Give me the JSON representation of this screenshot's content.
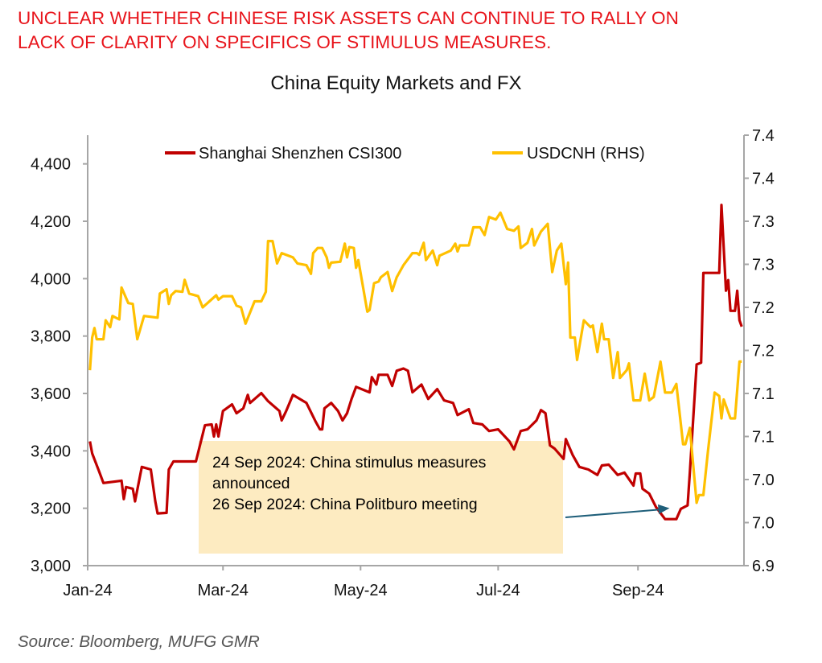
{
  "headline": [
    "UNCLEAR WHETHER CHINESE RISK ASSETS CAN CONTINUE TO RALLY ON",
    "LACK OF CLARITY ON SPECIFICS OF STIMULUS MEASURES."
  ],
  "source": "Source: Bloomberg, MUFG GMR",
  "chart_data": {
    "type": "line",
    "title": "China Equity Markets and FX",
    "xlabel": "",
    "ylabel": "",
    "x_range": [
      "2024-01-01",
      "2024-10-18"
    ],
    "x_ticks": [
      {
        "date": "2024-01-01",
        "label": "Jan-24"
      },
      {
        "date": "2024-03-01",
        "label": "Mar-24"
      },
      {
        "date": "2024-05-01",
        "label": "May-24"
      },
      {
        "date": "2024-07-01",
        "label": "Jul-24"
      },
      {
        "date": "2024-09-01",
        "label": "Sep-24"
      }
    ],
    "y_left": {
      "range": [
        3000,
        4500
      ],
      "ticks": [
        3000,
        3200,
        3400,
        3600,
        3800,
        4000,
        4200,
        4400
      ],
      "tick_labels": [
        "3,000",
        "3,200",
        "3,400",
        "3,600",
        "3,800",
        "4,000",
        "4,200",
        "4,400"
      ]
    },
    "y_right": {
      "range": [
        6.9,
        7.4
      ],
      "ticks": [
        6.9,
        6.95,
        7.0,
        7.05,
        7.1,
        7.15,
        7.2,
        7.25,
        7.3,
        7.35,
        7.4
      ],
      "tick_labels": [
        "6.9",
        "7.0",
        "7.0",
        "7.1",
        "7.1",
        "7.2",
        "7.2",
        "7.3",
        "7.3",
        "7.4",
        "7.4"
      ]
    },
    "grid": false,
    "legend": "top",
    "series": [
      {
        "name": "Shanghai Shenzhen CSI300",
        "axis": "left",
        "color": "#c00000",
        "points": [
          [
            "2024-01-02",
            3433
          ],
          [
            "2024-01-03",
            3391
          ],
          [
            "2024-01-06",
            3330
          ],
          [
            "2024-01-08",
            3288
          ],
          [
            "2024-01-16",
            3296
          ],
          [
            "2024-01-17",
            3232
          ],
          [
            "2024-01-18",
            3274
          ],
          [
            "2024-01-21",
            3268
          ],
          [
            "2024-01-22",
            3224
          ],
          [
            "2024-01-25",
            3344
          ],
          [
            "2024-01-29",
            3335
          ],
          [
            "2024-01-31",
            3224
          ],
          [
            "2024-02-01",
            3182
          ],
          [
            "2024-02-05",
            3184
          ],
          [
            "2024-02-06",
            3335
          ],
          [
            "2024-02-08",
            3363
          ],
          [
            "2024-02-18",
            3363
          ],
          [
            "2024-02-22",
            3489
          ],
          [
            "2024-02-25",
            3492
          ],
          [
            "2024-02-26",
            3450
          ],
          [
            "2024-02-27",
            3492
          ],
          [
            "2024-02-28",
            3450
          ],
          [
            "2024-03-01",
            3539
          ],
          [
            "2024-03-05",
            3562
          ],
          [
            "2024-03-07",
            3531
          ],
          [
            "2024-03-10",
            3548
          ],
          [
            "2024-03-12",
            3595
          ],
          [
            "2024-03-13",
            3567
          ],
          [
            "2024-03-18",
            3601
          ],
          [
            "2024-03-21",
            3573
          ],
          [
            "2024-03-26",
            3539
          ],
          [
            "2024-03-27",
            3506
          ],
          [
            "2024-03-29",
            3539
          ],
          [
            "2024-04-01",
            3595
          ],
          [
            "2024-04-07",
            3567
          ],
          [
            "2024-04-11",
            3503
          ],
          [
            "2024-04-13",
            3475
          ],
          [
            "2024-04-14",
            3475
          ],
          [
            "2024-04-15",
            3548
          ],
          [
            "2024-04-18",
            3567
          ],
          [
            "2024-04-21",
            3539
          ],
          [
            "2024-04-23",
            3506
          ],
          [
            "2024-04-25",
            3531
          ],
          [
            "2024-04-27",
            3581
          ],
          [
            "2024-04-29",
            3623
          ],
          [
            "2024-05-05",
            3604
          ],
          [
            "2024-05-06",
            3657
          ],
          [
            "2024-05-08",
            3631
          ],
          [
            "2024-05-09",
            3665
          ],
          [
            "2024-05-13",
            3665
          ],
          [
            "2024-05-15",
            3626
          ],
          [
            "2024-05-17",
            3679
          ],
          [
            "2024-05-20",
            3687
          ],
          [
            "2024-05-22",
            3679
          ],
          [
            "2024-05-24",
            3604
          ],
          [
            "2024-05-28",
            3631
          ],
          [
            "2024-05-31",
            3581
          ],
          [
            "2024-06-04",
            3615
          ],
          [
            "2024-06-07",
            3576
          ],
          [
            "2024-06-11",
            3567
          ],
          [
            "2024-06-13",
            3525
          ],
          [
            "2024-06-18",
            3545
          ],
          [
            "2024-06-20",
            3497
          ],
          [
            "2024-06-24",
            3492
          ],
          [
            "2024-06-27",
            3469
          ],
          [
            "2024-07-01",
            3475
          ],
          [
            "2024-07-06",
            3433
          ],
          [
            "2024-07-08",
            3405
          ],
          [
            "2024-07-11",
            3469
          ],
          [
            "2024-07-14",
            3475
          ],
          [
            "2024-07-18",
            3506
          ],
          [
            "2024-07-20",
            3542
          ],
          [
            "2024-07-22",
            3531
          ],
          [
            "2024-07-24",
            3419
          ],
          [
            "2024-07-26",
            3408
          ],
          [
            "2024-07-30",
            3372
          ],
          [
            "2024-07-31",
            3441
          ],
          [
            "2024-08-03",
            3386
          ],
          [
            "2024-08-06",
            3344
          ],
          [
            "2024-08-10",
            3335
          ],
          [
            "2024-08-14",
            3316
          ],
          [
            "2024-08-16",
            3349
          ],
          [
            "2024-08-19",
            3352
          ],
          [
            "2024-08-23",
            3316
          ],
          [
            "2024-08-26",
            3324
          ],
          [
            "2024-08-30",
            3279
          ],
          [
            "2024-08-31",
            3321
          ],
          [
            "2024-09-02",
            3321
          ],
          [
            "2024-09-03",
            3268
          ],
          [
            "2024-09-06",
            3251
          ],
          [
            "2024-09-09",
            3204
          ],
          [
            "2024-09-13",
            3162
          ],
          [
            "2024-09-18",
            3162
          ],
          [
            "2024-09-20",
            3198
          ],
          [
            "2024-09-23",
            3210
          ],
          [
            "2024-09-24",
            3324
          ],
          [
            "2024-09-27",
            3701
          ],
          [
            "2024-09-29",
            3707
          ],
          [
            "2024-09-30",
            4020
          ],
          [
            "2024-10-07",
            4020
          ],
          [
            "2024-10-08",
            4257
          ],
          [
            "2024-10-10",
            3958
          ],
          [
            "2024-10-11",
            3995
          ],
          [
            "2024-10-12",
            3888
          ],
          [
            "2024-10-14",
            3888
          ],
          [
            "2024-10-15",
            3958
          ],
          [
            "2024-10-16",
            3855
          ],
          [
            "2024-10-17",
            3833
          ]
        ]
      },
      {
        "name": "USDCNH (RHS)",
        "axis": "right",
        "color": "#ffc000",
        "points": [
          [
            "2024-01-02",
            7.127
          ],
          [
            "2024-01-03",
            7.165
          ],
          [
            "2024-01-04",
            7.176
          ],
          [
            "2024-01-05",
            7.163
          ],
          [
            "2024-01-08",
            7.163
          ],
          [
            "2024-01-09",
            7.185
          ],
          [
            "2024-01-11",
            7.177
          ],
          [
            "2024-01-12",
            7.19
          ],
          [
            "2024-01-15",
            7.186
          ],
          [
            "2024-01-16",
            7.223
          ],
          [
            "2024-01-19",
            7.205
          ],
          [
            "2024-01-21",
            7.204
          ],
          [
            "2024-01-23",
            7.163
          ],
          [
            "2024-01-26",
            7.19
          ],
          [
            "2024-02-01",
            7.188
          ],
          [
            "2024-02-02",
            7.216
          ],
          [
            "2024-02-05",
            7.221
          ],
          [
            "2024-02-06",
            7.204
          ],
          [
            "2024-02-07",
            7.214
          ],
          [
            "2024-02-09",
            7.219
          ],
          [
            "2024-02-12",
            7.218
          ],
          [
            "2024-02-13",
            7.232
          ],
          [
            "2024-02-15",
            7.216
          ],
          [
            "2024-02-19",
            7.213
          ],
          [
            "2024-02-21",
            7.2
          ],
          [
            "2024-02-24",
            7.207
          ],
          [
            "2024-02-27",
            7.214
          ],
          [
            "2024-02-28",
            7.209
          ],
          [
            "2024-03-01",
            7.213
          ],
          [
            "2024-03-05",
            7.213
          ],
          [
            "2024-03-07",
            7.202
          ],
          [
            "2024-03-09",
            7.2
          ],
          [
            "2024-03-11",
            7.181
          ],
          [
            "2024-03-15",
            7.207
          ],
          [
            "2024-03-18",
            7.207
          ],
          [
            "2024-03-20",
            7.218
          ],
          [
            "2024-03-21",
            7.277
          ],
          [
            "2024-03-23",
            7.277
          ],
          [
            "2024-03-25",
            7.251
          ],
          [
            "2024-03-27",
            7.263
          ],
          [
            "2024-04-01",
            7.258
          ],
          [
            "2024-04-03",
            7.251
          ],
          [
            "2024-04-07",
            7.249
          ],
          [
            "2024-04-09",
            7.239
          ],
          [
            "2024-04-10",
            7.263
          ],
          [
            "2024-04-12",
            7.269
          ],
          [
            "2024-04-14",
            7.269
          ],
          [
            "2024-04-16",
            7.258
          ],
          [
            "2024-04-17",
            7.246
          ],
          [
            "2024-04-18",
            7.252
          ],
          [
            "2024-04-22",
            7.253
          ],
          [
            "2024-04-24",
            7.274
          ],
          [
            "2024-04-25",
            7.258
          ],
          [
            "2024-04-26",
            7.27
          ],
          [
            "2024-04-28",
            7.269
          ],
          [
            "2024-04-29",
            7.246
          ],
          [
            "2024-04-30",
            7.255
          ],
          [
            "2024-05-04",
            7.195
          ],
          [
            "2024-05-05",
            7.197
          ],
          [
            "2024-05-07",
            7.228
          ],
          [
            "2024-05-09",
            7.23
          ],
          [
            "2024-05-10",
            7.235
          ],
          [
            "2024-05-13",
            7.241
          ],
          [
            "2024-05-15",
            7.219
          ],
          [
            "2024-05-17",
            7.235
          ],
          [
            "2024-05-20",
            7.249
          ],
          [
            "2024-05-24",
            7.263
          ],
          [
            "2024-05-26",
            7.263
          ],
          [
            "2024-05-27",
            7.261
          ],
          [
            "2024-05-29",
            7.275
          ],
          [
            "2024-05-30",
            7.255
          ],
          [
            "2024-06-02",
            7.266
          ],
          [
            "2024-06-04",
            7.249
          ],
          [
            "2024-06-05",
            7.26
          ],
          [
            "2024-06-10",
            7.266
          ],
          [
            "2024-06-12",
            7.274
          ],
          [
            "2024-06-13",
            7.265
          ],
          [
            "2024-06-14",
            7.272
          ],
          [
            "2024-06-18",
            7.272
          ],
          [
            "2024-06-20",
            7.293
          ],
          [
            "2024-06-23",
            7.293
          ],
          [
            "2024-06-25",
            7.284
          ],
          [
            "2024-06-27",
            7.305
          ],
          [
            "2024-06-30",
            7.302
          ],
          [
            "2024-07-02",
            7.31
          ],
          [
            "2024-07-05",
            7.291
          ],
          [
            "2024-07-08",
            7.289
          ],
          [
            "2024-07-10",
            7.294
          ],
          [
            "2024-07-11",
            7.269
          ],
          [
            "2024-07-14",
            7.275
          ],
          [
            "2024-07-16",
            7.291
          ],
          [
            "2024-07-17",
            7.272
          ],
          [
            "2024-07-20",
            7.288
          ],
          [
            "2024-07-23",
            7.297
          ],
          [
            "2024-07-25",
            7.241
          ],
          [
            "2024-07-27",
            7.266
          ],
          [
            "2024-07-29",
            7.274
          ],
          [
            "2024-07-31",
            7.227
          ],
          [
            "2024-08-01",
            7.252
          ],
          [
            "2024-08-02",
            7.165
          ],
          [
            "2024-08-04",
            7.165
          ],
          [
            "2024-08-05",
            7.139
          ],
          [
            "2024-08-08",
            7.185
          ],
          [
            "2024-08-11",
            7.177
          ],
          [
            "2024-08-12",
            7.179
          ],
          [
            "2024-08-14",
            7.148
          ],
          [
            "2024-08-16",
            7.181
          ],
          [
            "2024-08-17",
            7.163
          ],
          [
            "2024-08-19",
            7.163
          ],
          [
            "2024-08-21",
            7.118
          ],
          [
            "2024-08-23",
            7.148
          ],
          [
            "2024-08-24",
            7.118
          ],
          [
            "2024-08-27",
            7.127
          ],
          [
            "2024-08-28",
            7.135
          ],
          [
            "2024-08-30",
            7.092
          ],
          [
            "2024-09-02",
            7.092
          ],
          [
            "2024-09-04",
            7.123
          ],
          [
            "2024-09-06",
            7.092
          ],
          [
            "2024-09-08",
            7.096
          ],
          [
            "2024-09-11",
            7.137
          ],
          [
            "2024-09-13",
            7.101
          ],
          [
            "2024-09-16",
            7.101
          ],
          [
            "2024-09-18",
            7.111
          ],
          [
            "2024-09-21",
            7.041
          ],
          [
            "2024-09-22",
            7.041
          ],
          [
            "2024-09-24",
            7.06
          ],
          [
            "2024-09-27",
            6.973
          ],
          [
            "2024-09-28",
            6.982
          ],
          [
            "2024-09-30",
            6.982
          ],
          [
            "2024-10-02",
            7.032
          ],
          [
            "2024-10-05",
            7.101
          ],
          [
            "2024-10-07",
            7.097
          ],
          [
            "2024-10-08",
            7.071
          ],
          [
            "2024-10-09",
            7.093
          ],
          [
            "2024-10-12",
            7.071
          ],
          [
            "2024-10-14",
            7.071
          ],
          [
            "2024-10-16",
            7.137
          ],
          [
            "2024-10-17",
            7.137
          ]
        ]
      }
    ],
    "annotation": {
      "lines": [
        "24 Sep 2024: China stimulus measures",
        "announced",
        "26 Sep 2024: China Politburo meeting"
      ],
      "box_color": "#fdebc1",
      "arrow_color": "#1f5f7a",
      "arrow_target": [
        "2024-09-15",
        3200
      ]
    }
  }
}
